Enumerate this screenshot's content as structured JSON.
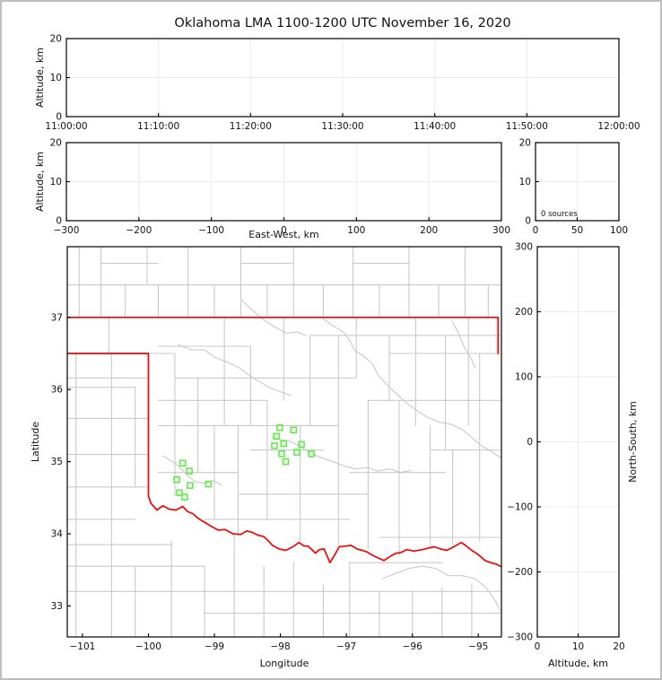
{
  "window": {
    "title": "Oklahoma LMA 1100-1200 UTC November 16, 2020"
  },
  "colors": {
    "source_green": "#55ee3c",
    "county_gray": "#c9c9c9",
    "state_red": "#fb0000",
    "grid_gray": "#ececec",
    "spine_black": "#000000",
    "background": "#ffffff"
  },
  "chart_data": [
    {
      "id": "time-height",
      "type": "scatter",
      "title": "Oklahoma LMA 1100-1200 UTC November 16, 2020",
      "ylabel": "Altitude, km",
      "xlim": [
        "11:00:00",
        "12:00:00"
      ],
      "ylim": [
        0,
        20
      ],
      "xtick_labels": [
        "11:00:00",
        "11:10:00",
        "11:20:00",
        "11:30:00",
        "11:40:00",
        "11:50:00",
        "12:00:00"
      ],
      "ytick_vals": [
        0,
        10,
        20
      ],
      "ytick_labels": [
        "0",
        "10",
        "20"
      ],
      "grid_y": [
        10
      ],
      "points": []
    },
    {
      "id": "ew-height",
      "type": "scatter",
      "xlabel": "East-West, km",
      "ylabel": "Altitude, km",
      "xlim": [
        -300,
        300
      ],
      "ylim": [
        0,
        20
      ],
      "xtick_vals": [
        -300,
        -200,
        -100,
        0,
        100,
        200,
        300
      ],
      "xtick_labels": [
        "−300",
        "−200",
        "−100",
        "0",
        "100",
        "200",
        "300"
      ],
      "ytick_vals": [
        0,
        10,
        20
      ],
      "ytick_labels": [
        "0",
        "10",
        "20"
      ],
      "grid_x": [
        -200,
        -100,
        0,
        100,
        200
      ],
      "grid_y": [
        10
      ],
      "points": []
    },
    {
      "id": "alt-histogram",
      "type": "histogram",
      "annotation": "0 sources",
      "xlim": [
        0,
        100
      ],
      "ylim": [
        0,
        20
      ],
      "xtick_vals": [
        0,
        50,
        100
      ],
      "xtick_labels": [
        "0",
        "50",
        "100"
      ],
      "ytick_vals": [
        0,
        10,
        20
      ],
      "ytick_labels": [
        "0",
        "10",
        "20"
      ],
      "grid_x": [
        50
      ],
      "grid_y": [
        10
      ],
      "points": []
    },
    {
      "id": "plan-map",
      "type": "scatter",
      "xlabel": "Longitude",
      "ylabel": "Latitude",
      "xlim": [
        -101.23,
        -94.65
      ],
      "ylim": [
        32.57,
        37.98
      ],
      "xtick_vals": [
        -101,
        -100,
        -99,
        -98,
        -97,
        -96,
        -95
      ],
      "xtick_labels": [
        "−101",
        "−100",
        "−99",
        "−98",
        "−97",
        "−96",
        "−95"
      ],
      "ytick_vals": [
        33,
        34,
        35,
        36,
        37
      ],
      "ytick_labels": [
        "33",
        "34",
        "35",
        "36",
        "37"
      ],
      "grid_x": [],
      "grid_y": [],
      "points": [
        [
          -99.48,
          34.98
        ],
        [
          -99.38,
          34.87
        ],
        [
          -99.57,
          34.75
        ],
        [
          -99.37,
          34.67
        ],
        [
          -99.09,
          34.69
        ],
        [
          -99.53,
          34.57
        ],
        [
          -99.45,
          34.51
        ],
        [
          -98.01,
          35.47
        ],
        [
          -97.8,
          35.44
        ],
        [
          -98.06,
          35.35
        ],
        [
          -97.95,
          35.25
        ],
        [
          -98.09,
          35.22
        ],
        [
          -97.68,
          35.24
        ],
        [
          -97.75,
          35.13
        ],
        [
          -97.98,
          35.11
        ],
        [
          -97.53,
          35.11
        ],
        [
          -97.92,
          35.0
        ]
      ]
    },
    {
      "id": "ns-height",
      "type": "scatter",
      "xlabel": "Altitude, km",
      "ylabel": "North-South, km",
      "xlim": [
        0,
        20
      ],
      "ylim": [
        -300,
        300
      ],
      "xtick_vals": [
        0,
        10,
        20
      ],
      "xtick_labels": [
        "0",
        "10",
        "20"
      ],
      "ytick_vals": [
        300,
        200,
        100,
        0,
        -100,
        -200,
        -300
      ],
      "ytick_labels": [
        "300",
        "200",
        "100",
        "0",
        "−100",
        "−200",
        "−300"
      ],
      "grid_x": [
        10
      ],
      "grid_y": [
        -200,
        -100,
        0,
        100,
        200
      ],
      "points": []
    }
  ],
  "map_overlay": {
    "state_border": [
      [
        [
          -101.23,
          37.0
        ],
        [
          -94.7,
          37.0
        ],
        [
          -94.7,
          36.5
        ]
      ],
      [
        [
          -101.23,
          36.5
        ],
        [
          -100.0,
          36.5
        ],
        [
          -100.0,
          34.52
        ],
        [
          -99.96,
          34.42
        ],
        [
          -99.87,
          34.33
        ],
        [
          -99.78,
          34.39
        ],
        [
          -99.68,
          34.34
        ],
        [
          -99.58,
          34.33
        ],
        [
          -99.48,
          34.38
        ],
        [
          -99.41,
          34.31
        ],
        [
          -99.33,
          34.28
        ],
        [
          -99.24,
          34.21
        ],
        [
          -99.13,
          34.15
        ],
        [
          -99.04,
          34.1
        ],
        [
          -98.94,
          34.05
        ],
        [
          -98.84,
          34.06
        ],
        [
          -98.72,
          34.0
        ],
        [
          -98.6,
          33.99
        ],
        [
          -98.51,
          34.04
        ],
        [
          -98.43,
          34.02
        ],
        [
          -98.34,
          33.98
        ],
        [
          -98.25,
          33.96
        ],
        [
          -98.17,
          33.89
        ],
        [
          -98.12,
          33.84
        ],
        [
          -98.02,
          33.79
        ],
        [
          -97.92,
          33.77
        ],
        [
          -97.81,
          33.82
        ],
        [
          -97.72,
          33.88
        ],
        [
          -97.64,
          33.83
        ],
        [
          -97.58,
          33.83
        ],
        [
          -97.51,
          33.77
        ],
        [
          -97.47,
          33.73
        ],
        [
          -97.41,
          33.78
        ],
        [
          -97.34,
          33.79
        ],
        [
          -97.29,
          33.69
        ],
        [
          -97.25,
          33.6
        ],
        [
          -97.18,
          33.7
        ],
        [
          -97.11,
          33.82
        ],
        [
          -97.01,
          33.83
        ],
        [
          -96.93,
          33.84
        ],
        [
          -96.84,
          33.79
        ],
        [
          -96.76,
          33.77
        ],
        [
          -96.69,
          33.75
        ],
        [
          -96.62,
          33.71
        ],
        [
          -96.53,
          33.67
        ],
        [
          -96.43,
          33.63
        ],
        [
          -96.33,
          33.69
        ],
        [
          -96.25,
          33.73
        ],
        [
          -96.17,
          33.74
        ],
        [
          -96.09,
          33.78
        ],
        [
          -95.97,
          33.76
        ],
        [
          -95.85,
          33.78
        ],
        [
          -95.76,
          33.8
        ],
        [
          -95.67,
          33.82
        ],
        [
          -95.57,
          33.79
        ],
        [
          -95.48,
          33.77
        ],
        [
          -95.37,
          33.82
        ],
        [
          -95.26,
          33.88
        ],
        [
          -95.21,
          33.85
        ],
        [
          -95.17,
          33.82
        ],
        [
          -95.1,
          33.77
        ],
        [
          -95.03,
          33.73
        ],
        [
          -94.96,
          33.68
        ],
        [
          -94.9,
          33.63
        ],
        [
          -94.81,
          33.6
        ],
        [
          -94.73,
          33.58
        ],
        [
          -94.6,
          33.52
        ]
      ]
    ],
    "county_v": [
      [
        -101.05,
        37.0,
        37.98
      ],
      [
        -100.72,
        37.0,
        37.98
      ],
      [
        -100.35,
        37.0,
        37.45
      ],
      [
        -100.02,
        37.45,
        37.98
      ],
      [
        -99.85,
        37.0,
        37.45
      ],
      [
        -99.4,
        37.0,
        37.98
      ],
      [
        -99.0,
        37.0,
        37.45
      ],
      [
        -98.6,
        37.0,
        37.98
      ],
      [
        -98.2,
        37.0,
        37.45
      ],
      [
        -97.8,
        37.0,
        37.98
      ],
      [
        -97.35,
        37.0,
        37.45
      ],
      [
        -96.9,
        37.0,
        37.98
      ],
      [
        -96.5,
        37.0,
        37.45
      ],
      [
        -96.05,
        37.0,
        37.98
      ],
      [
        -95.6,
        37.0,
        37.45
      ],
      [
        -95.2,
        37.0,
        37.98
      ],
      [
        -94.85,
        37.0,
        37.45
      ],
      [
        -100.6,
        36.5,
        37.0
      ],
      [
        -101.1,
        32.57,
        36.5
      ],
      [
        -100.56,
        32.57,
        36.5
      ],
      [
        -100.2,
        34.65,
        36.03
      ],
      [
        -100.2,
        32.57,
        33.55
      ],
      [
        -99.6,
        34.52,
        36.5
      ],
      [
        -99.25,
        34.85,
        36.16
      ],
      [
        -99.0,
        34.2,
        35.5
      ],
      [
        -98.85,
        35.5,
        37.0
      ],
      [
        -98.64,
        33.98,
        35.5
      ],
      [
        -98.45,
        35.5,
        36.6
      ],
      [
        -98.2,
        34.2,
        35.85
      ],
      [
        -97.95,
        35.85,
        37.0
      ],
      [
        -97.7,
        33.9,
        35.5
      ],
      [
        -97.55,
        35.5,
        36.75
      ],
      [
        -97.12,
        33.85,
        36.75
      ],
      [
        -96.85,
        36.16,
        37.0
      ],
      [
        -96.67,
        33.8,
        35.85
      ],
      [
        -96.35,
        35.85,
        36.75
      ],
      [
        -96.2,
        33.7,
        35.85
      ],
      [
        -95.95,
        35.5,
        37.0
      ],
      [
        -95.73,
        33.8,
        35.5
      ],
      [
        -95.5,
        35.16,
        36.75
      ],
      [
        -95.39,
        33.85,
        35.16
      ],
      [
        -95.15,
        35.5,
        37.0
      ],
      [
        -94.98,
        33.9,
        36.5
      ],
      [
        -99.65,
        32.57,
        33.9
      ],
      [
        -99.15,
        32.57,
        33.55
      ],
      [
        -98.7,
        32.57,
        33.98
      ],
      [
        -98.25,
        32.57,
        33.55
      ],
      [
        -97.8,
        32.57,
        33.6
      ],
      [
        -97.35,
        32.57,
        33.3
      ],
      [
        -96.95,
        32.57,
        33.6
      ],
      [
        -96.5,
        32.57,
        33.2
      ],
      [
        -96.0,
        32.57,
        33.2
      ],
      [
        -95.55,
        32.57,
        33.25
      ],
      [
        -95.1,
        32.57,
        33.3
      ]
    ],
    "county_h": [
      [
        37.45,
        -101.23,
        -94.65
      ],
      [
        37.75,
        -100.72,
        -99.85
      ],
      [
        37.75,
        -98.6,
        -97.8
      ],
      [
        37.75,
        -96.9,
        -96.05
      ],
      [
        36.75,
        -97.55,
        -94.65
      ],
      [
        36.6,
        -99.85,
        -98.45
      ],
      [
        36.5,
        -100.0,
        -99.6
      ],
      [
        36.5,
        -96.35,
        -94.65
      ],
      [
        36.16,
        -101.23,
        -100.0
      ],
      [
        36.16,
        -99.6,
        -96.85
      ],
      [
        36.03,
        -101.23,
        -100.2
      ],
      [
        35.85,
        -99.85,
        -98.2
      ],
      [
        35.85,
        -96.67,
        -94.65
      ],
      [
        35.6,
        -101.23,
        -100.0
      ],
      [
        35.5,
        -99.85,
        -97.12
      ],
      [
        35.16,
        -98.45,
        -97.35
      ],
      [
        35.16,
        -95.73,
        -94.65
      ],
      [
        35.1,
        -101.23,
        -100.0
      ],
      [
        34.85,
        -99.85,
        -98.64
      ],
      [
        34.85,
        -96.95,
        -95.5
      ],
      [
        34.65,
        -101.23,
        -100.0
      ],
      [
        34.55,
        -98.64,
        -96.67
      ],
      [
        34.2,
        -99.15,
        -96.95
      ],
      [
        34.2,
        -101.23,
        -100.2
      ],
      [
        33.95,
        -96.5,
        -94.65
      ],
      [
        33.85,
        -101.23,
        -99.65
      ],
      [
        33.55,
        -101.23,
        -99.15
      ],
      [
        33.2,
        -101.23,
        -94.65
      ],
      [
        32.9,
        -99.15,
        -94.65
      ],
      [
        33.6,
        -96.95,
        -95.55
      ]
    ],
    "rivers": [
      [
        [
          -99.55,
          36.62
        ],
        [
          -99.35,
          36.55
        ],
        [
          -99.15,
          36.55
        ],
        [
          -99.0,
          36.45
        ],
        [
          -98.8,
          36.38
        ],
        [
          -98.62,
          36.3
        ],
        [
          -98.45,
          36.18
        ],
        [
          -98.3,
          36.1
        ],
        [
          -98.15,
          36.02
        ],
        [
          -98.0,
          35.97
        ],
        [
          -97.85,
          35.92
        ]
      ],
      [
        [
          -97.35,
          36.98
        ],
        [
          -97.2,
          36.88
        ],
        [
          -97.05,
          36.8
        ],
        [
          -96.95,
          36.68
        ],
        [
          -96.88,
          36.55
        ],
        [
          -96.72,
          36.45
        ],
        [
          -96.6,
          36.35
        ],
        [
          -96.52,
          36.2
        ],
        [
          -96.4,
          36.08
        ],
        [
          -96.25,
          35.95
        ],
        [
          -96.1,
          35.82
        ],
        [
          -95.95,
          35.72
        ],
        [
          -95.78,
          35.62
        ],
        [
          -95.6,
          35.55
        ],
        [
          -95.42,
          35.52
        ],
        [
          -95.25,
          35.45
        ],
        [
          -95.08,
          35.32
        ],
        [
          -94.95,
          35.22
        ],
        [
          -94.82,
          35.15
        ],
        [
          -94.65,
          35.05
        ]
      ],
      [
        [
          -98.12,
          35.34
        ],
        [
          -97.98,
          35.3
        ],
        [
          -97.85,
          35.28
        ],
        [
          -97.72,
          35.22
        ],
        [
          -97.58,
          35.14
        ],
        [
          -97.45,
          35.08
        ],
        [
          -97.3,
          35.03
        ],
        [
          -97.15,
          34.98
        ],
        [
          -97.0,
          34.93
        ],
        [
          -96.85,
          34.9
        ],
        [
          -96.68,
          34.92
        ],
        [
          -96.52,
          34.87
        ],
        [
          -96.35,
          34.9
        ],
        [
          -96.18,
          34.85
        ],
        [
          -96.02,
          34.88
        ]
      ],
      [
        [
          -99.78,
          35.08
        ],
        [
          -99.6,
          34.98
        ],
        [
          -99.48,
          34.88
        ],
        [
          -99.38,
          34.78
        ],
        [
          -99.28,
          34.72
        ],
        [
          -99.15,
          34.7
        ],
        [
          -99.02,
          34.74
        ],
        [
          -98.9,
          34.68
        ]
      ],
      [
        [
          -96.45,
          33.38
        ],
        [
          -96.25,
          33.45
        ],
        [
          -96.05,
          33.52
        ],
        [
          -95.85,
          33.55
        ],
        [
          -95.65,
          33.52
        ],
        [
          -95.45,
          33.42
        ],
        [
          -95.25,
          33.42
        ],
        [
          -95.05,
          33.38
        ],
        [
          -94.88,
          33.25
        ],
        [
          -94.75,
          33.08
        ],
        [
          -94.68,
          32.95
        ]
      ],
      [
        [
          -98.6,
          37.25
        ],
        [
          -98.45,
          37.12
        ],
        [
          -98.3,
          37.0
        ],
        [
          -98.18,
          36.92
        ],
        [
          -98.05,
          36.85
        ],
        [
          -97.9,
          36.78
        ],
        [
          -97.75,
          36.8
        ],
        [
          -97.62,
          36.75
        ]
      ],
      [
        [
          -95.4,
          36.95
        ],
        [
          -95.3,
          36.78
        ],
        [
          -95.22,
          36.6
        ],
        [
          -95.12,
          36.45
        ],
        [
          -95.05,
          36.3
        ]
      ]
    ]
  }
}
